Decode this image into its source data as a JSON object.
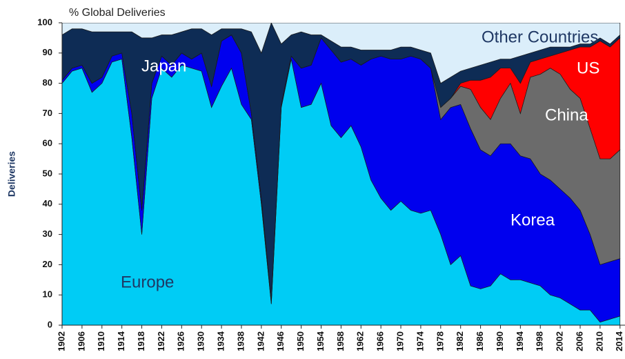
{
  "chart_data": {
    "type": "stacked_area",
    "title": "% Global Deliveries",
    "y_label": "Deliveries",
    "x": [
      1902,
      1904,
      1906,
      1908,
      1910,
      1912,
      1914,
      1916,
      1918,
      1920,
      1922,
      1924,
      1926,
      1928,
      1930,
      1932,
      1934,
      1936,
      1938,
      1940,
      1942,
      1944,
      1946,
      1948,
      1950,
      1952,
      1954,
      1956,
      1958,
      1960,
      1962,
      1964,
      1966,
      1968,
      1970,
      1972,
      1974,
      1976,
      1978,
      1980,
      1982,
      1984,
      1986,
      1988,
      1990,
      1992,
      1994,
      1996,
      1998,
      2000,
      2002,
      2004,
      2006,
      2008,
      2010,
      2012,
      2014
    ],
    "series": [
      {
        "name": "Europe",
        "color": "#00ccf5",
        "values": [
          80,
          84,
          85,
          77,
          80,
          87,
          88,
          62,
          30,
          75,
          85,
          82,
          86,
          85,
          84,
          72,
          79,
          85,
          73,
          68,
          40,
          7,
          72,
          88,
          72,
          73,
          80,
          66,
          62,
          66,
          59,
          48,
          42,
          38,
          41,
          38,
          37,
          38,
          30,
          20,
          23,
          13,
          12,
          13,
          17,
          15,
          15,
          14,
          13,
          10,
          9,
          7,
          5,
          5,
          1,
          2,
          3
        ]
      },
      {
        "name": "Japan",
        "color": "#0000ee",
        "values": [
          1,
          1,
          1,
          3,
          2,
          2,
          2,
          8,
          8,
          5,
          4,
          4,
          4,
          3,
          6,
          7,
          15,
          11,
          17,
          2,
          2,
          1,
          1,
          1,
          13,
          13,
          15,
          25,
          25,
          22,
          27,
          40,
          47,
          50,
          47,
          51,
          51,
          47,
          38,
          52,
          50,
          52,
          46,
          43,
          43,
          45,
          41,
          41,
          37,
          38,
          36,
          35,
          33,
          25,
          19,
          19,
          19
        ]
      },
      {
        "name": "Korea",
        "color": "#6b6b6b",
        "values": [
          0,
          0,
          0,
          0,
          0,
          0,
          0,
          0,
          0,
          0,
          0,
          0,
          0,
          0,
          0,
          0,
          0,
          0,
          0,
          0,
          0,
          0,
          0,
          0,
          0,
          0,
          0,
          0,
          0,
          0,
          0,
          0,
          0,
          0,
          0,
          0,
          0,
          0,
          4,
          3,
          6,
          13,
          14,
          12,
          15,
          20,
          14,
          27,
          33,
          37,
          38,
          36,
          37,
          35,
          35,
          34,
          36
        ]
      },
      {
        "name": "China",
        "color": "#ff0000",
        "values": [
          0,
          0,
          0,
          0,
          0,
          0,
          0,
          0,
          0,
          0,
          0,
          0,
          0,
          0,
          0,
          0,
          0,
          0,
          0,
          0,
          0,
          0,
          0,
          0,
          0,
          0,
          0,
          0,
          0,
          0,
          0,
          0,
          0,
          0,
          0,
          0,
          0,
          0,
          0,
          0,
          1,
          3,
          9,
          14,
          10,
          5,
          10,
          5,
          5,
          4,
          7,
          13,
          17,
          27,
          39,
          37,
          37
        ]
      },
      {
        "name": "US",
        "color": "#0e2c55",
        "values": [
          15,
          13,
          12,
          17,
          15,
          8,
          7,
          27,
          57,
          15,
          7,
          10,
          7,
          10,
          8,
          17,
          4,
          2,
          8,
          27,
          48,
          92,
          20,
          7,
          12,
          10,
          1,
          3,
          5,
          4,
          5,
          3,
          2,
          3,
          4,
          3,
          3,
          5,
          8,
          7,
          4,
          4,
          5,
          5,
          3,
          3,
          9,
          3,
          3,
          3,
          2,
          1,
          1,
          1,
          1,
          1,
          1
        ]
      },
      {
        "name": "Other Countries",
        "color": "#dbeefa",
        "values": [
          4,
          2,
          2,
          3,
          3,
          3,
          3,
          3,
          5,
          5,
          4,
          4,
          3,
          2,
          2,
          4,
          2,
          2,
          2,
          3,
          10,
          0,
          7,
          4,
          3,
          4,
          4,
          6,
          8,
          8,
          9,
          9,
          9,
          9,
          8,
          8,
          9,
          10,
          20,
          18,
          16,
          15,
          14,
          13,
          12,
          12,
          11,
          10,
          9,
          8,
          8,
          8,
          7,
          7,
          5,
          7,
          4
        ]
      }
    ],
    "xlim": [
      1902,
      2015
    ],
    "xticks": [
      1902,
      1906,
      1910,
      1914,
      1918,
      1922,
      1926,
      1930,
      1934,
      1938,
      1942,
      1946,
      1950,
      1954,
      1958,
      1962,
      1966,
      1970,
      1974,
      1978,
      1982,
      1986,
      1990,
      1994,
      1998,
      2002,
      2006,
      2010,
      2014
    ],
    "ylim": [
      0,
      100
    ],
    "yticks": [
      0,
      10,
      20,
      30,
      40,
      50,
      60,
      70,
      80,
      90,
      100
    ]
  }
}
